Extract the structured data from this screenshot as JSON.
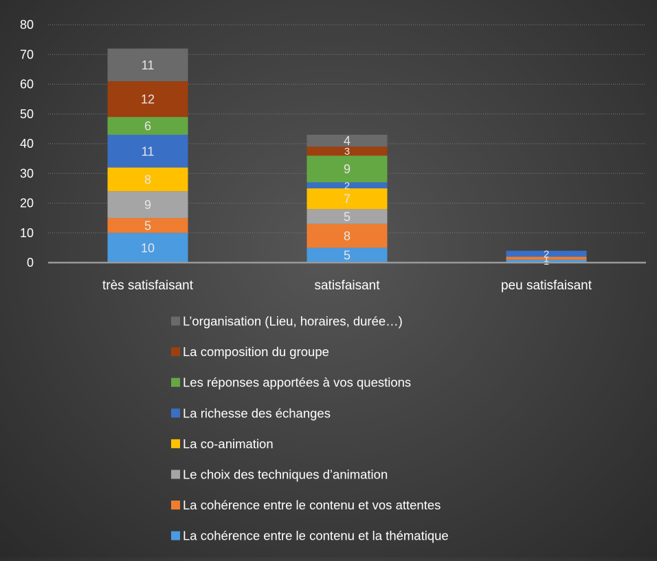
{
  "chart_data": {
    "type": "bar",
    "stacked": true,
    "title": "",
    "xlabel": "",
    "ylabel": "",
    "categories": [
      "très satisfaisant",
      "satisfaisant",
      "peu satisfaisant"
    ],
    "ylim": [
      0,
      80
    ],
    "yticks": [
      0,
      10,
      20,
      30,
      40,
      50,
      60,
      70,
      80
    ],
    "grid": true,
    "legend_position": "bottom",
    "series": [
      {
        "name": "La cohérence entre le contenu et la thématique",
        "color": "#4a9be0",
        "label_color": "#e6e6e6",
        "values": [
          10,
          5,
          1
        ]
      },
      {
        "name": "La cohérence entre le contenu et vos attentes",
        "color": "#ef7d31",
        "label_color": "#e6e6e6",
        "values": [
          5,
          8,
          1
        ]
      },
      {
        "name": "Le choix des techniques d’animation",
        "color": "#a5a5a5",
        "label_color": "#e6e6e6",
        "values": [
          9,
          5,
          0
        ]
      },
      {
        "name": "La co-animation",
        "color": "#ffc000",
        "label_color": "#e6e6e6",
        "values": [
          8,
          7,
          0
        ]
      },
      {
        "name": "La richesse des échanges",
        "color": "#3a6fc6",
        "label_color": "#e6e6e6",
        "values": [
          11,
          2,
          2
        ]
      },
      {
        "name": "Les réponses apportées à vos questions",
        "color": "#64a844",
        "label_color": "#e6e6e6",
        "values": [
          6,
          9,
          0
        ]
      },
      {
        "name": "La composition du groupe",
        "color": "#9e3f0f",
        "label_color": "#e6e6e6",
        "values": [
          12,
          3,
          0
        ]
      },
      {
        "name": "L’organisation (Lieu, horaires, durée…)",
        "color": "#6a6a6a",
        "label_color": "#e6e6e6",
        "values": [
          11,
          4,
          0
        ]
      }
    ]
  }
}
